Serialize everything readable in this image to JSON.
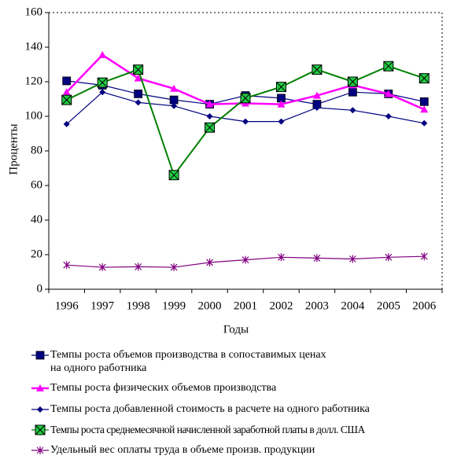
{
  "chart_data": {
    "type": "line",
    "xlabel": "Годы",
    "ylabel": "Проценты",
    "categories": [
      "1996",
      "1997",
      "1998",
      "1999",
      "2000",
      "2001",
      "2002",
      "2003",
      "2004",
      "2005",
      "2006"
    ],
    "ylim": [
      0,
      160
    ],
    "yticks": [
      0,
      20,
      40,
      60,
      80,
      100,
      120,
      140,
      160
    ],
    "series": [
      {
        "name": "Темпы роста объемов производства в сопоставимых ценах\nна одного работника",
        "color": "#000080",
        "marker": "square",
        "values": [
          120.5,
          118,
          113,
          109.5,
          107,
          112,
          110.5,
          107,
          114,
          113,
          108.5
        ]
      },
      {
        "name": "Темпы роста физических объемов производства",
        "color": "#ff00ff",
        "marker": "triangle",
        "values": [
          114,
          135.5,
          122,
          116,
          107,
          107.5,
          107,
          112,
          118,
          113,
          104
        ]
      },
      {
        "name": "Темпы роста добавленной стоимость в расчете на одного работника",
        "color": "#000080",
        "marker": "diamond",
        "values": [
          95.5,
          114,
          108,
          106,
          100,
          97,
          97,
          105,
          103.5,
          100,
          96
        ]
      },
      {
        "name": "Темпы роста среднемесячной начисленной заработной платы в долл. США",
        "color": "#008000",
        "marker": "xsquare",
        "values": [
          109.5,
          119.5,
          127,
          66,
          93.5,
          110.5,
          117,
          127,
          120,
          129,
          122
        ]
      },
      {
        "name": "Удельный вес оплаты труда в объеме произв. продукции",
        "color": "#800080",
        "marker": "asterisk",
        "values": [
          14,
          12.7,
          13,
          12.7,
          15.5,
          17,
          18.5,
          18,
          17.5,
          18.5,
          19
        ]
      }
    ]
  }
}
